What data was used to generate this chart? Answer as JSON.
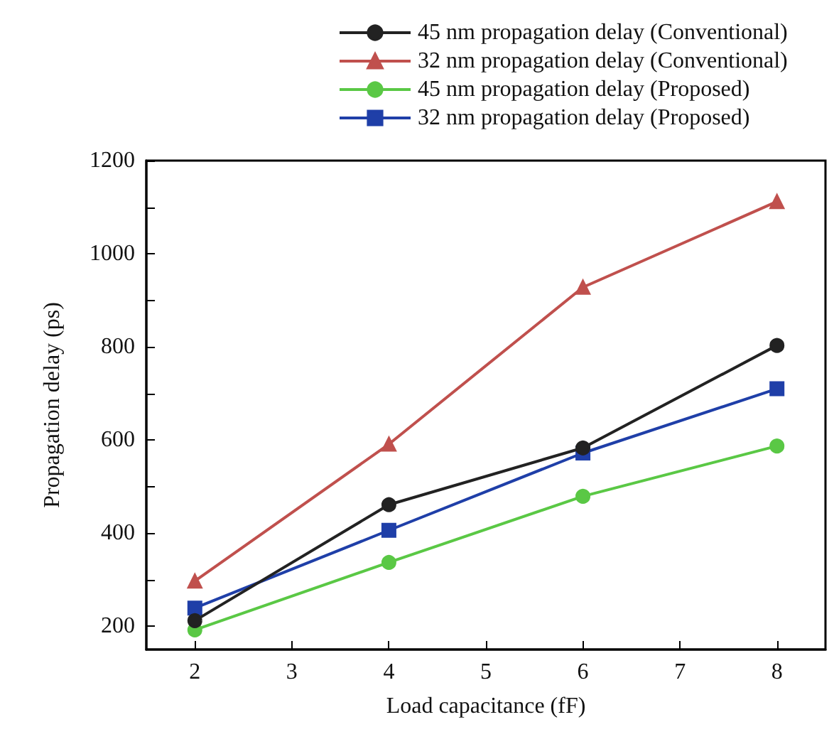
{
  "chart_data": {
    "type": "line",
    "xlabel": "Load capacitance (fF)",
    "ylabel": "Propagation delay (ps)",
    "x": [
      2,
      4,
      6,
      8
    ],
    "xlim": [
      1.5,
      8.5
    ],
    "xticks": [
      2,
      3,
      4,
      5,
      6,
      7,
      8
    ],
    "ylim": [
      150,
      1200
    ],
    "yticks": [
      200,
      {
        "value": 300,
        "label": null
      },
      400,
      {
        "value": 500,
        "label": null
      },
      600,
      {
        "value": 700,
        "label": null
      },
      800,
      {
        "value": 900,
        "label": null
      },
      1000,
      {
        "value": 1100,
        "label": null
      },
      1200
    ],
    "legend": "top",
    "grid": false,
    "series": [
      {
        "name": "45 nm propagation delay (Conventional)",
        "color": "#222222",
        "marker": "circle",
        "values": [
          212,
          461,
          583,
          803
        ]
      },
      {
        "name": "32 nm propagation delay (Conventional)",
        "color": "#c0504d",
        "marker": "triangle",
        "values": [
          297,
          591,
          928,
          1112
        ]
      },
      {
        "name": "45 nm propagation delay (Proposed)",
        "color": "#5ac845",
        "marker": "circle",
        "values": [
          192,
          337,
          479,
          587
        ]
      },
      {
        "name": "32 nm propagation delay (Proposed)",
        "color": "#1f3fa8",
        "marker": "square",
        "values": [
          239,
          406,
          572,
          710
        ]
      }
    ]
  }
}
